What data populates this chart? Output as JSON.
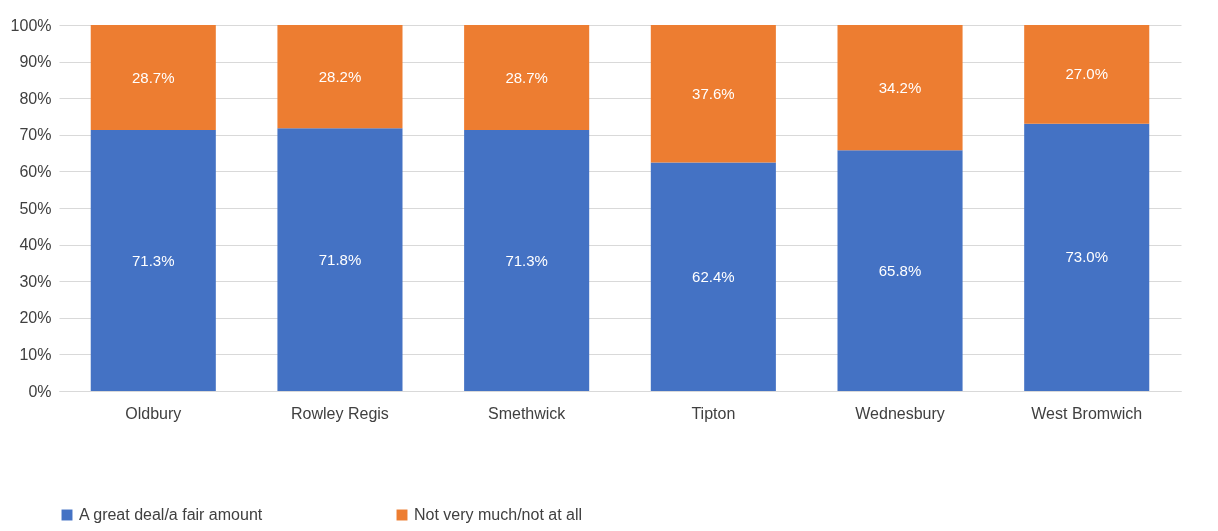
{
  "chart_data": {
    "type": "bar",
    "stacked": true,
    "categories": [
      "Oldbury",
      "Rowley Regis",
      "Smethwick",
      "Tipton",
      "Wednesbury",
      "West Bromwich"
    ],
    "series": [
      {
        "name": "A great deal/a fair amount",
        "color": "#4472c4",
        "values": [
          71.3,
          71.8,
          71.3,
          62.4,
          65.8,
          73.0
        ],
        "value_labels": [
          "71.3%",
          "71.8%",
          "71.3%",
          "62.4%",
          "65.8%",
          "73.0%"
        ]
      },
      {
        "name": "Not very much/not at all",
        "color": "#ed7d31",
        "values": [
          28.7,
          28.2,
          28.7,
          37.6,
          34.2,
          27.0
        ],
        "value_labels": [
          "28.7%",
          "28.2%",
          "28.7%",
          "37.6%",
          "34.2%",
          "27.0%"
        ]
      }
    ],
    "ylim": [
      0,
      100
    ],
    "yticks": [
      {
        "value": 0,
        "label": "0%"
      },
      {
        "value": 10,
        "label": "10%"
      },
      {
        "value": 20,
        "label": "20%"
      },
      {
        "value": 30,
        "label": "30%"
      },
      {
        "value": 40,
        "label": "40%"
      },
      {
        "value": 50,
        "label": "50%"
      },
      {
        "value": 60,
        "label": "60%"
      },
      {
        "value": 70,
        "label": "70%"
      },
      {
        "value": 80,
        "label": "80%"
      },
      {
        "value": 90,
        "label": "90%"
      },
      {
        "value": 100,
        "label": "100%"
      }
    ],
    "grid": "y",
    "legend": "bottom"
  }
}
